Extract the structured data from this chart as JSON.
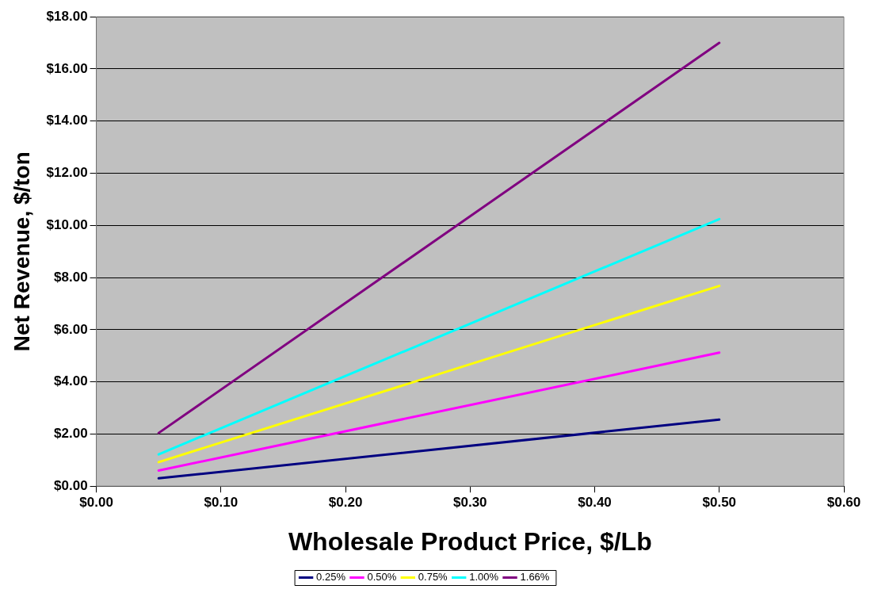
{
  "chart_data": {
    "type": "line",
    "xlabel": "Wholesale Product Price, $/Lb",
    "ylabel": "Net Revenue, $/ton",
    "x": [
      0.05,
      0.5
    ],
    "series": [
      {
        "name": "0.25%",
        "color": "#000080",
        "values": [
          0.3,
          2.55
        ]
      },
      {
        "name": "0.50%",
        "color": "#ff00ff",
        "values": [
          0.6,
          5.12
        ]
      },
      {
        "name": "0.75%",
        "color": "#ffff00",
        "values": [
          0.92,
          7.68
        ]
      },
      {
        "name": "1.00%",
        "color": "#00ffff",
        "values": [
          1.22,
          10.24
        ]
      },
      {
        "name": "1.66%",
        "color": "#800080",
        "values": [
          2.04,
          17.0
        ]
      }
    ],
    "xlim": [
      0,
      0.6
    ],
    "xticks": [
      {
        "value": 0,
        "label": "$0.00"
      },
      {
        "value": 0.1,
        "label": "$0.10"
      },
      {
        "value": 0.2,
        "label": "$0.20"
      },
      {
        "value": 0.3,
        "label": "$0.30"
      },
      {
        "value": 0.4,
        "label": "$0.40"
      },
      {
        "value": 0.5,
        "label": "$0.50"
      },
      {
        "value": 0.6,
        "label": "$0.60"
      }
    ],
    "ylim": [
      0,
      18
    ],
    "yticks": [
      {
        "value": 0,
        "label": "$0.00"
      },
      {
        "value": 2,
        "label": "$2.00"
      },
      {
        "value": 4,
        "label": "$4.00"
      },
      {
        "value": 6,
        "label": "$6.00"
      },
      {
        "value": 8,
        "label": "$8.00"
      },
      {
        "value": 10,
        "label": "$10.00"
      },
      {
        "value": 12,
        "label": "$12.00"
      },
      {
        "value": 14,
        "label": "$14.00"
      },
      {
        "value": 16,
        "label": "$16.00"
      },
      {
        "value": 18,
        "label": "$18.00"
      }
    ],
    "grid": "y",
    "legend": "bottom",
    "marker": "none",
    "line_style": "solid"
  }
}
